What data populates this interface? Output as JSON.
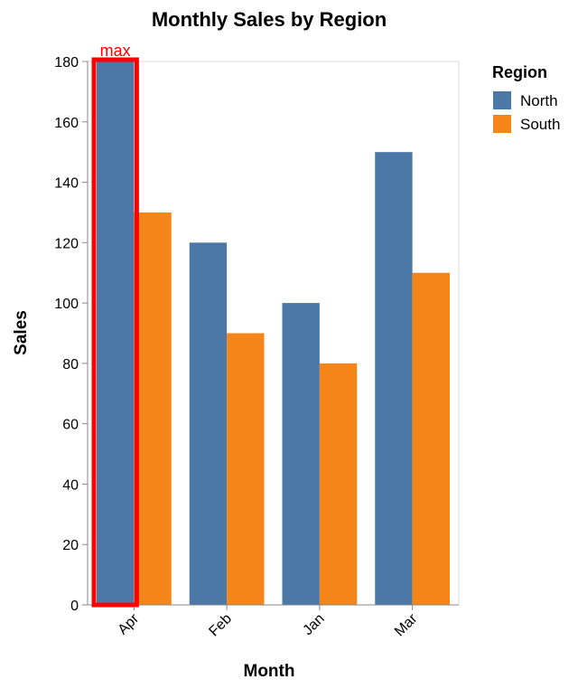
{
  "chart_data": {
    "type": "bar",
    "title": "Monthly Sales by Region",
    "xlabel": "Month",
    "ylabel": "Sales",
    "categories": [
      "Apr",
      "Feb",
      "Jan",
      "Mar"
    ],
    "series": [
      {
        "name": "North",
        "values": [
          180,
          120,
          100,
          150
        ],
        "color": "#4c78a8"
      },
      {
        "name": "South",
        "values": [
          130,
          90,
          80,
          110
        ],
        "color": "#f58518"
      }
    ],
    "ylim": [
      0,
      180
    ],
    "yticks": [
      0,
      20,
      40,
      60,
      80,
      100,
      120,
      140,
      160,
      180
    ],
    "grid": false,
    "legend": {
      "title": "Region",
      "position": "top-right"
    },
    "annotation": {
      "label": "max",
      "category": "Apr",
      "series": "North",
      "color": "#ff0000"
    }
  }
}
